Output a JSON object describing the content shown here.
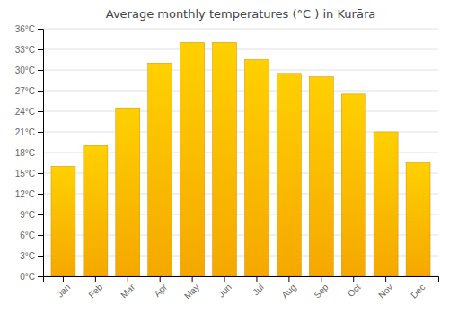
{
  "chart_data": {
    "type": "bar",
    "title": "Average monthly temperatures (°C ) in Kurāra",
    "categories": [
      "Jan",
      "Feb",
      "Mar",
      "Apr",
      "May",
      "Jun",
      "Jul",
      "Aug",
      "Sep",
      "Oct",
      "Nov",
      "Dec"
    ],
    "values": [
      16,
      19,
      24.5,
      31,
      34,
      34,
      31.5,
      29.5,
      29,
      26.5,
      21,
      16.5
    ],
    "color": "#F5A800",
    "ylim": [
      0,
      36
    ],
    "yticks": [
      {
        "value": 0,
        "label": "0°C"
      },
      {
        "value": 3,
        "label": "3°C"
      },
      {
        "value": 6,
        "label": "6°C"
      },
      {
        "value": 9,
        "label": "9°C"
      },
      {
        "value": 12,
        "label": "12°C"
      },
      {
        "value": 15,
        "label": "15°C"
      },
      {
        "value": 18,
        "label": "18°C"
      },
      {
        "value": 21,
        "label": "21°C"
      },
      {
        "value": 24,
        "label": "24°C"
      },
      {
        "value": 27,
        "label": "27°C"
      },
      {
        "value": 30,
        "label": "30°C"
      },
      {
        "value": 33,
        "label": "33°C"
      },
      {
        "value": 36,
        "label": "36°C"
      }
    ],
    "grid": true
  }
}
